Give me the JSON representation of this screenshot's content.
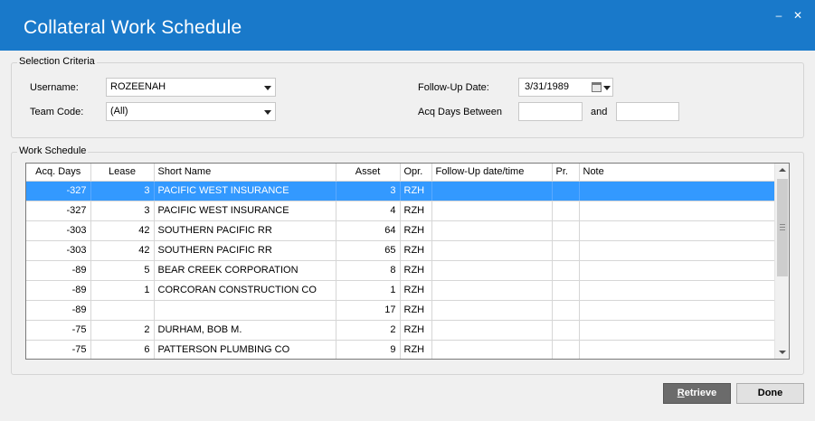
{
  "window": {
    "title": "Collateral Work Schedule",
    "minimize_glyph": "‒",
    "close_glyph": "✕"
  },
  "selection": {
    "legend": "Selection Criteria",
    "username_label": "Username:",
    "username_value": "ROZEENAH",
    "team_code_label": "Team Code:",
    "team_code_value": "(All)",
    "followup_date_label": "Follow-Up Date:",
    "followup_date_value": "3/31/1989",
    "acq_days_label": "Acq Days Between",
    "acq_days_from": "",
    "and_label": "and",
    "acq_days_to": ""
  },
  "schedule": {
    "legend": "Work Schedule",
    "columns": [
      "Acq. Days",
      "Lease",
      "Short Name",
      "Asset",
      "Opr.",
      "Follow-Up date/time",
      "Pr.",
      "Note"
    ],
    "rows": [
      {
        "acq_days": "-327",
        "lease": "3",
        "short_name": "PACIFIC WEST INSURANCE",
        "asset": "3",
        "opr": "RZH",
        "followup": "",
        "pr": "",
        "note": ""
      },
      {
        "acq_days": "-327",
        "lease": "3",
        "short_name": "PACIFIC WEST INSURANCE",
        "asset": "4",
        "opr": "RZH",
        "followup": "",
        "pr": "",
        "note": ""
      },
      {
        "acq_days": "-303",
        "lease": "42",
        "short_name": "SOUTHERN PACIFIC RR",
        "asset": "64",
        "opr": "RZH",
        "followup": "",
        "pr": "",
        "note": ""
      },
      {
        "acq_days": "-303",
        "lease": "42",
        "short_name": "SOUTHERN PACIFIC RR",
        "asset": "65",
        "opr": "RZH",
        "followup": "",
        "pr": "",
        "note": ""
      },
      {
        "acq_days": "-89",
        "lease": "5",
        "short_name": "BEAR CREEK CORPORATION",
        "asset": "8",
        "opr": "RZH",
        "followup": "",
        "pr": "",
        "note": ""
      },
      {
        "acq_days": "-89",
        "lease": "1",
        "short_name": "CORCORAN CONSTRUCTION CO",
        "asset": "1",
        "opr": "RZH",
        "followup": "",
        "pr": "",
        "note": ""
      },
      {
        "acq_days": "-89",
        "lease": "",
        "short_name": "",
        "asset": "17",
        "opr": "RZH",
        "followup": "",
        "pr": "",
        "note": ""
      },
      {
        "acq_days": "-75",
        "lease": "2",
        "short_name": "DURHAM, BOB M.",
        "asset": "2",
        "opr": "RZH",
        "followup": "",
        "pr": "",
        "note": ""
      },
      {
        "acq_days": "-75",
        "lease": "6",
        "short_name": "PATTERSON PLUMBING CO",
        "asset": "9",
        "opr": "RZH",
        "followup": "",
        "pr": "",
        "note": ""
      }
    ],
    "selected_row": 0
  },
  "buttons": {
    "retrieve_mnemonic": "R",
    "retrieve_rest": "etrieve",
    "done_label": "Done"
  },
  "colors": {
    "titlebar": "#1979ca",
    "selection": "#3399ff",
    "retrieve_button": "#6b6b6b"
  }
}
